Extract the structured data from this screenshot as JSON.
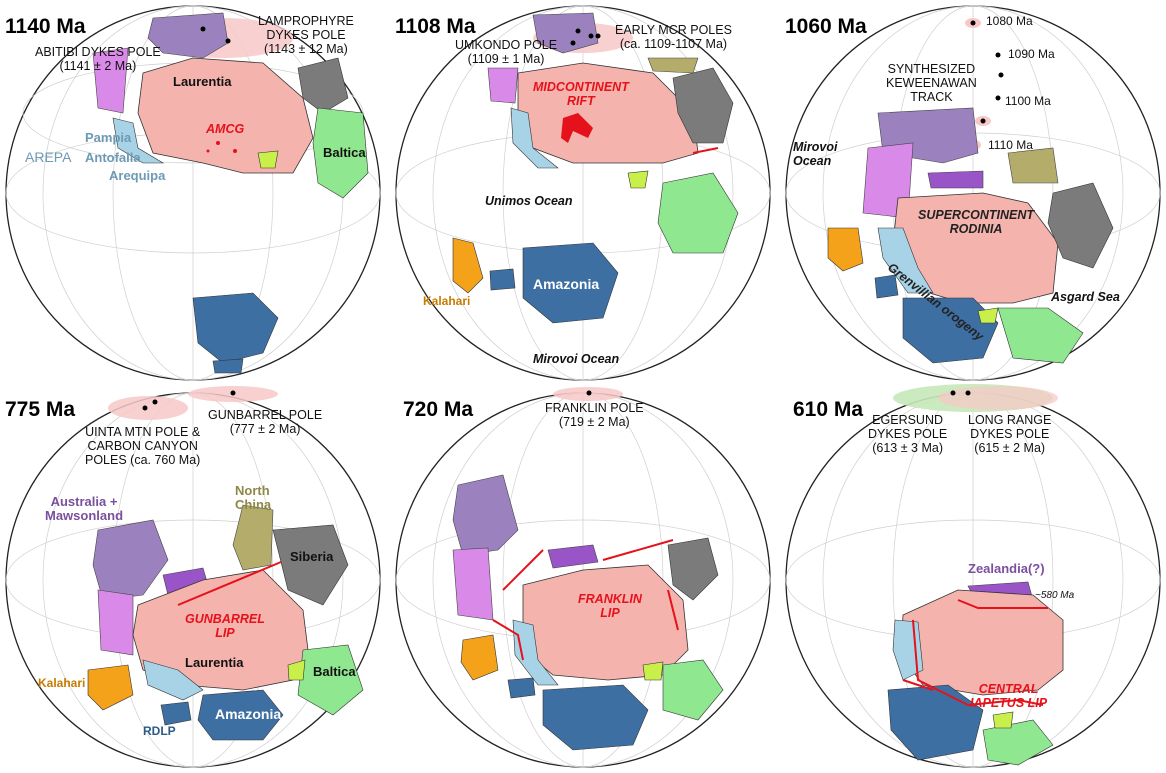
{
  "panels": [
    {
      "age": "1140 Ma",
      "poles": [
        {
          "line1": "LAMPROPHYRE",
          "line2": "DYKES POLE",
          "line3": "(1143 ± 12 Ma)"
        },
        {
          "line1": "ABITIBI DYKES POLE",
          "line2": "(1141 ± 2 Ma)"
        }
      ],
      "continents": [
        "Laurentia",
        "Baltica",
        "Pampia",
        "Antofalla",
        "Arequipa",
        "AREPA"
      ],
      "features": [
        "AMCG"
      ]
    },
    {
      "age": "1108 Ma",
      "poles": [
        {
          "line1": "EARLY MCR POLES",
          "line2": "(ca. 1109-1107 Ma)"
        },
        {
          "line1": "UMKONDO POLE",
          "line2": "(1109 ± 1 Ma)"
        }
      ],
      "continents": [
        "Amazonia",
        "Kalahari"
      ],
      "oceans": [
        "Unimos Ocean",
        "Mirovoi Ocean"
      ],
      "features": [
        "MIDCONTINENT",
        "RIFT"
      ]
    },
    {
      "age": "1060 Ma",
      "track_title": [
        "SYNTHESIZED",
        "KEWEENAWAN",
        "TRACK"
      ],
      "track_ages": [
        "1080 Ma",
        "1090 Ma",
        "1100 Ma",
        "1110 Ma"
      ],
      "oceans": [
        "Mirovoi",
        "Ocean",
        "Asgard Sea"
      ],
      "features": [
        "SUPERCONTINENT",
        "RODINIA",
        "Grenvillian orogeny"
      ]
    },
    {
      "age": "775 Ma",
      "poles": [
        {
          "line1": "GUNBARREL POLE",
          "line2": "(777 ± 2 Ma)"
        },
        {
          "line1": "UINTA MTN POLE &",
          "line2": "CARBON CANYON",
          "line3": "POLES (ca. 760 Ma)"
        }
      ],
      "continents": [
        "Australia +",
        "Mawsonland",
        "North",
        "China",
        "Siberia",
        "Laurentia",
        "Baltica",
        "Kalahari",
        "Amazonia",
        "RDLP"
      ],
      "features": [
        "GUNBARREL",
        "LIP"
      ]
    },
    {
      "age": "720 Ma",
      "poles": [
        {
          "line1": "FRANKLIN POLE",
          "line2": "(719 ± 2 Ma)"
        }
      ],
      "features": [
        "FRANKLIN",
        "LIP"
      ]
    },
    {
      "age": "610 Ma",
      "poles": [
        {
          "line1": "EGERSUND",
          "line2": "DYKES POLE",
          "line3": "(613 ± 3 Ma)"
        },
        {
          "line1": "LONG RANGE",
          "line2": "DYKES POLE",
          "line3": "(615 ± 2 Ma)"
        }
      ],
      "continents": [
        "Zealandia(?)"
      ],
      "annotations": [
        "~580 Ma"
      ],
      "features": [
        "CENTRAL",
        "IAPETUS LIP"
      ]
    }
  ],
  "colors": {
    "laurentia": "#f5b3ae",
    "baltica": "#8fe88f",
    "amazonia": "#3e6fa3",
    "kalahari": "#f5a21b",
    "australia": "#9b82bf",
    "east_antarctica": "#d98ae8",
    "mawson_small": "#9955c8",
    "siberia": "#7b7b7b",
    "north_china": "#b3ac6b",
    "arepa": "#a8d3e6",
    "rift_red": "#e5121b",
    "pole_fill": "#f8c8c8",
    "pole_green": "#c6e8b8"
  }
}
